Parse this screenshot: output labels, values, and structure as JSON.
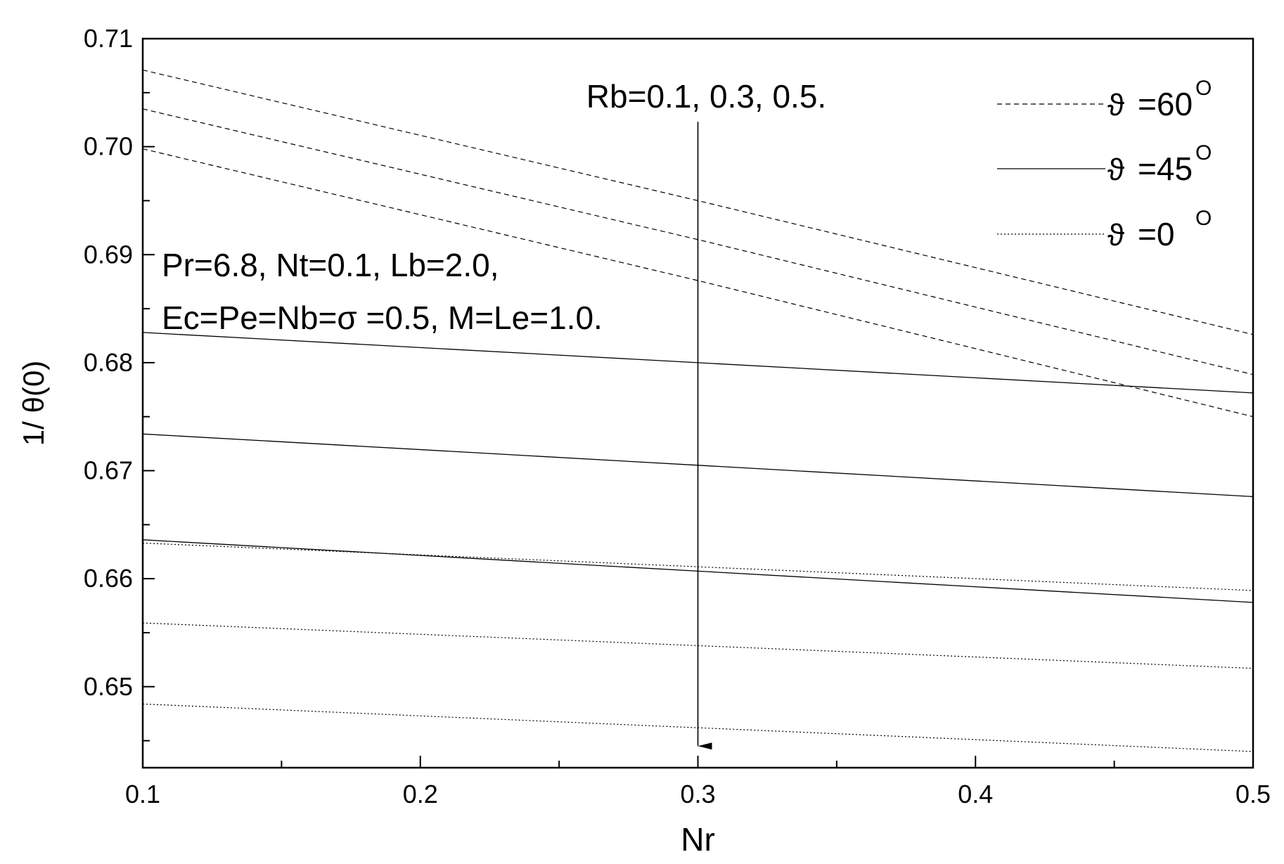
{
  "chart_data": {
    "type": "line",
    "xlabel": "Nr",
    "ylabel": "1/ θ(0)",
    "xlim": [
      0.1,
      0.5
    ],
    "ylim": [
      0.6425,
      0.71
    ],
    "x_ticks": [
      "0.1",
      "0.2",
      "0.3",
      "0.4",
      "0.5"
    ],
    "x_tick_values": [
      0.1,
      0.2,
      0.3,
      0.4,
      0.5
    ],
    "x_minor_step": 0.05,
    "y_ticks": [
      "0.65",
      "0.66",
      "0.67",
      "0.68",
      "0.69",
      "0.70",
      "0.71"
    ],
    "y_tick_values": [
      0.65,
      0.66,
      0.67,
      0.68,
      0.69,
      0.7,
      0.71
    ],
    "y_minor_step": 0.005,
    "grid": false,
    "legend_position": "top-right",
    "legend": [
      {
        "symbol": "ϑ",
        "value": "=60",
        "sup": "O",
        "style": "dashed"
      },
      {
        "symbol": "ϑ",
        "value": "=45",
        "sup": "O",
        "style": "solid"
      },
      {
        "symbol": "ϑ",
        "value": "=0",
        "sup": "O",
        "style": "dotted"
      }
    ],
    "annotations": {
      "arrow_label": "Rb=0.1, 0.3, 0.5.",
      "arrow_x": 0.3,
      "arrow_from_y": 0.7023,
      "arrow_to_y": 0.6445,
      "params_line1": "Pr=6.8, Nt=0.1, Lb=2.0,",
      "params_line2": "Ec=Pe=Nb=σ =0.5, M=Le=1.0."
    },
    "series": [
      {
        "style": "dashed",
        "x": [
          0.1,
          0.3,
          0.5
        ],
        "values": [
          0.7071,
          0.695,
          0.6826
        ]
      },
      {
        "style": "dashed",
        "x": [
          0.1,
          0.3,
          0.5
        ],
        "values": [
          0.7035,
          0.6914,
          0.6789
        ]
      },
      {
        "style": "dashed",
        "x": [
          0.1,
          0.3,
          0.5
        ],
        "values": [
          0.6998,
          0.6876,
          0.675
        ]
      },
      {
        "style": "solid",
        "x": [
          0.1,
          0.3,
          0.5
        ],
        "values": [
          0.6828,
          0.68,
          0.6772
        ]
      },
      {
        "style": "solid",
        "x": [
          0.1,
          0.3,
          0.5
        ],
        "values": [
          0.6734,
          0.6705,
          0.6676
        ]
      },
      {
        "style": "solid",
        "x": [
          0.1,
          0.3,
          0.5
        ],
        "values": [
          0.6636,
          0.6607,
          0.6578
        ]
      },
      {
        "style": "dotted",
        "x": [
          0.1,
          0.3,
          0.5
        ],
        "values": [
          0.6633,
          0.6611,
          0.6589
        ]
      },
      {
        "style": "dotted",
        "x": [
          0.1,
          0.3,
          0.5
        ],
        "values": [
          0.6559,
          0.6538,
          0.6517
        ]
      },
      {
        "style": "dotted",
        "x": [
          0.1,
          0.3,
          0.5
        ],
        "values": [
          0.6484,
          0.6462,
          0.644
        ]
      }
    ]
  }
}
